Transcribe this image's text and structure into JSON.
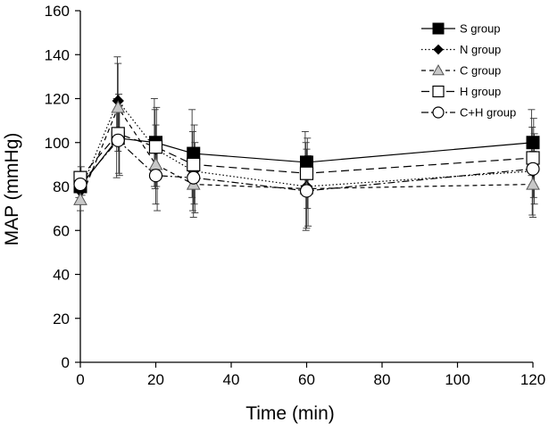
{
  "chart_data": {
    "type": "line",
    "xlabel": "Time (min)",
    "ylabel": "MAP (mmHg)",
    "xlim": [
      0,
      120
    ],
    "ylim": [
      0,
      160
    ],
    "xticks": [
      0,
      20,
      40,
      60,
      80,
      100,
      120
    ],
    "yticks": [
      0,
      20,
      40,
      60,
      80,
      100,
      120,
      140,
      160
    ],
    "x": [
      0,
      10,
      20,
      30,
      60,
      120
    ],
    "grid": false,
    "legend_position": "top-right",
    "series": [
      {
        "name": "S group",
        "marker": "square-filled",
        "dash": "solid",
        "values": [
          80,
          102,
          100,
          95,
          91,
          100
        ],
        "errors": [
          5,
          18,
          20,
          20,
          14,
          15
        ]
      },
      {
        "name": "N group",
        "marker": "diamond-filled",
        "dash": "dotted",
        "values": [
          78,
          119,
          97,
          87,
          80,
          87
        ],
        "errors": [
          5,
          20,
          18,
          18,
          20,
          20
        ]
      },
      {
        "name": "C group",
        "marker": "triangle-open",
        "dash": "dashed",
        "values": [
          74,
          116,
          90,
          81,
          79,
          81
        ],
        "errors": [
          5,
          20,
          18,
          15,
          18,
          15
        ]
      },
      {
        "name": "H group",
        "marker": "square-open",
        "dash": "longdash",
        "values": [
          84,
          104,
          98,
          90,
          86,
          93
        ],
        "errors": [
          5,
          18,
          18,
          18,
          16,
          18
        ]
      },
      {
        "name": "C+H group",
        "marker": "circle-open",
        "dash": "dashdot",
        "values": [
          81,
          101,
          85,
          84,
          78,
          88
        ],
        "errors": [
          5,
          16,
          16,
          16,
          16,
          16
        ]
      }
    ]
  }
}
